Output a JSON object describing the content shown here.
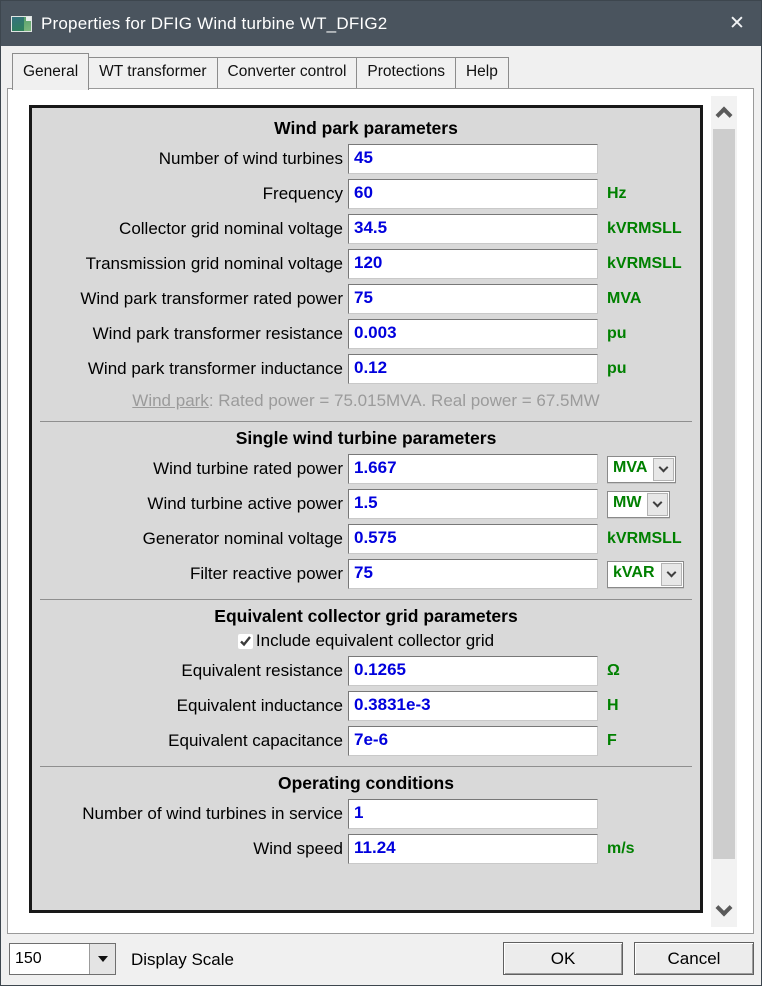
{
  "window": {
    "title": "Properties for DFIG Wind turbine WT_DFIG2",
    "close_icon": "✕"
  },
  "tabs": [
    {
      "label": "General"
    },
    {
      "label": "WT transformer"
    },
    {
      "label": "Converter control"
    },
    {
      "label": "Protections"
    },
    {
      "label": "Help"
    }
  ],
  "colors": {
    "titlebar": "#4a545e",
    "value_text": "#0000dd",
    "unit_text": "#008000",
    "panel_bg": "#d9d9d9"
  },
  "panel": {
    "sections": [
      {
        "heading": "Wind park parameters",
        "rows": [
          {
            "label": "Number of wind turbines",
            "value": "45",
            "unit": ""
          },
          {
            "label": "Frequency",
            "value": "60",
            "unit": "Hz"
          },
          {
            "label": "Collector grid nominal voltage",
            "value": "34.5",
            "unit": "kVRMSLL"
          },
          {
            "label": "Transmission grid nominal voltage",
            "value": "120",
            "unit": "kVRMSLL"
          },
          {
            "label": "Wind park transformer rated power",
            "value": "75",
            "unit": "MVA"
          },
          {
            "label": "Wind park transformer resistance",
            "value": "0.003",
            "unit": "pu"
          },
          {
            "label": "Wind park transformer inductance",
            "value": "0.12",
            "unit": "pu"
          }
        ],
        "summary": {
          "link": "Wind park",
          "text": ": Rated power = 75.015MVA. Real power = 67.5MW"
        }
      },
      {
        "heading": "Single wind turbine parameters",
        "rows": [
          {
            "label": "Wind turbine rated power",
            "value": "1.667",
            "unit": "MVA",
            "unit_kind": "select"
          },
          {
            "label": "Wind turbine active power",
            "value": "1.5",
            "unit": "MW",
            "unit_kind": "select"
          },
          {
            "label": "Generator nominal voltage",
            "value": "0.575",
            "unit": "kVRMSLL",
            "unit_kind": "static"
          },
          {
            "label": "Filter reactive power",
            "value": "75",
            "unit": "kVAR",
            "unit_kind": "select"
          }
        ]
      },
      {
        "heading": "Equivalent collector grid parameters",
        "checkbox": {
          "label": "Include equivalent collector grid",
          "checked": true
        },
        "rows": [
          {
            "label": "Equivalent resistance",
            "value": "0.1265",
            "unit": "Ω"
          },
          {
            "label": "Equivalent inductance",
            "value": "0.3831e-3",
            "unit": "H"
          },
          {
            "label": "Equivalent capacitance",
            "value": "7e-6",
            "unit": "F"
          }
        ]
      },
      {
        "heading": "Operating conditions",
        "rows": [
          {
            "label": "Number of wind turbines in service",
            "value": "1",
            "unit": ""
          },
          {
            "label": "Wind speed",
            "value": "11.24",
            "unit": "m/s"
          }
        ]
      }
    ]
  },
  "footer": {
    "scale_value": "150",
    "scale_label": "Display Scale",
    "ok_label": "OK",
    "cancel_label": "Cancel"
  }
}
